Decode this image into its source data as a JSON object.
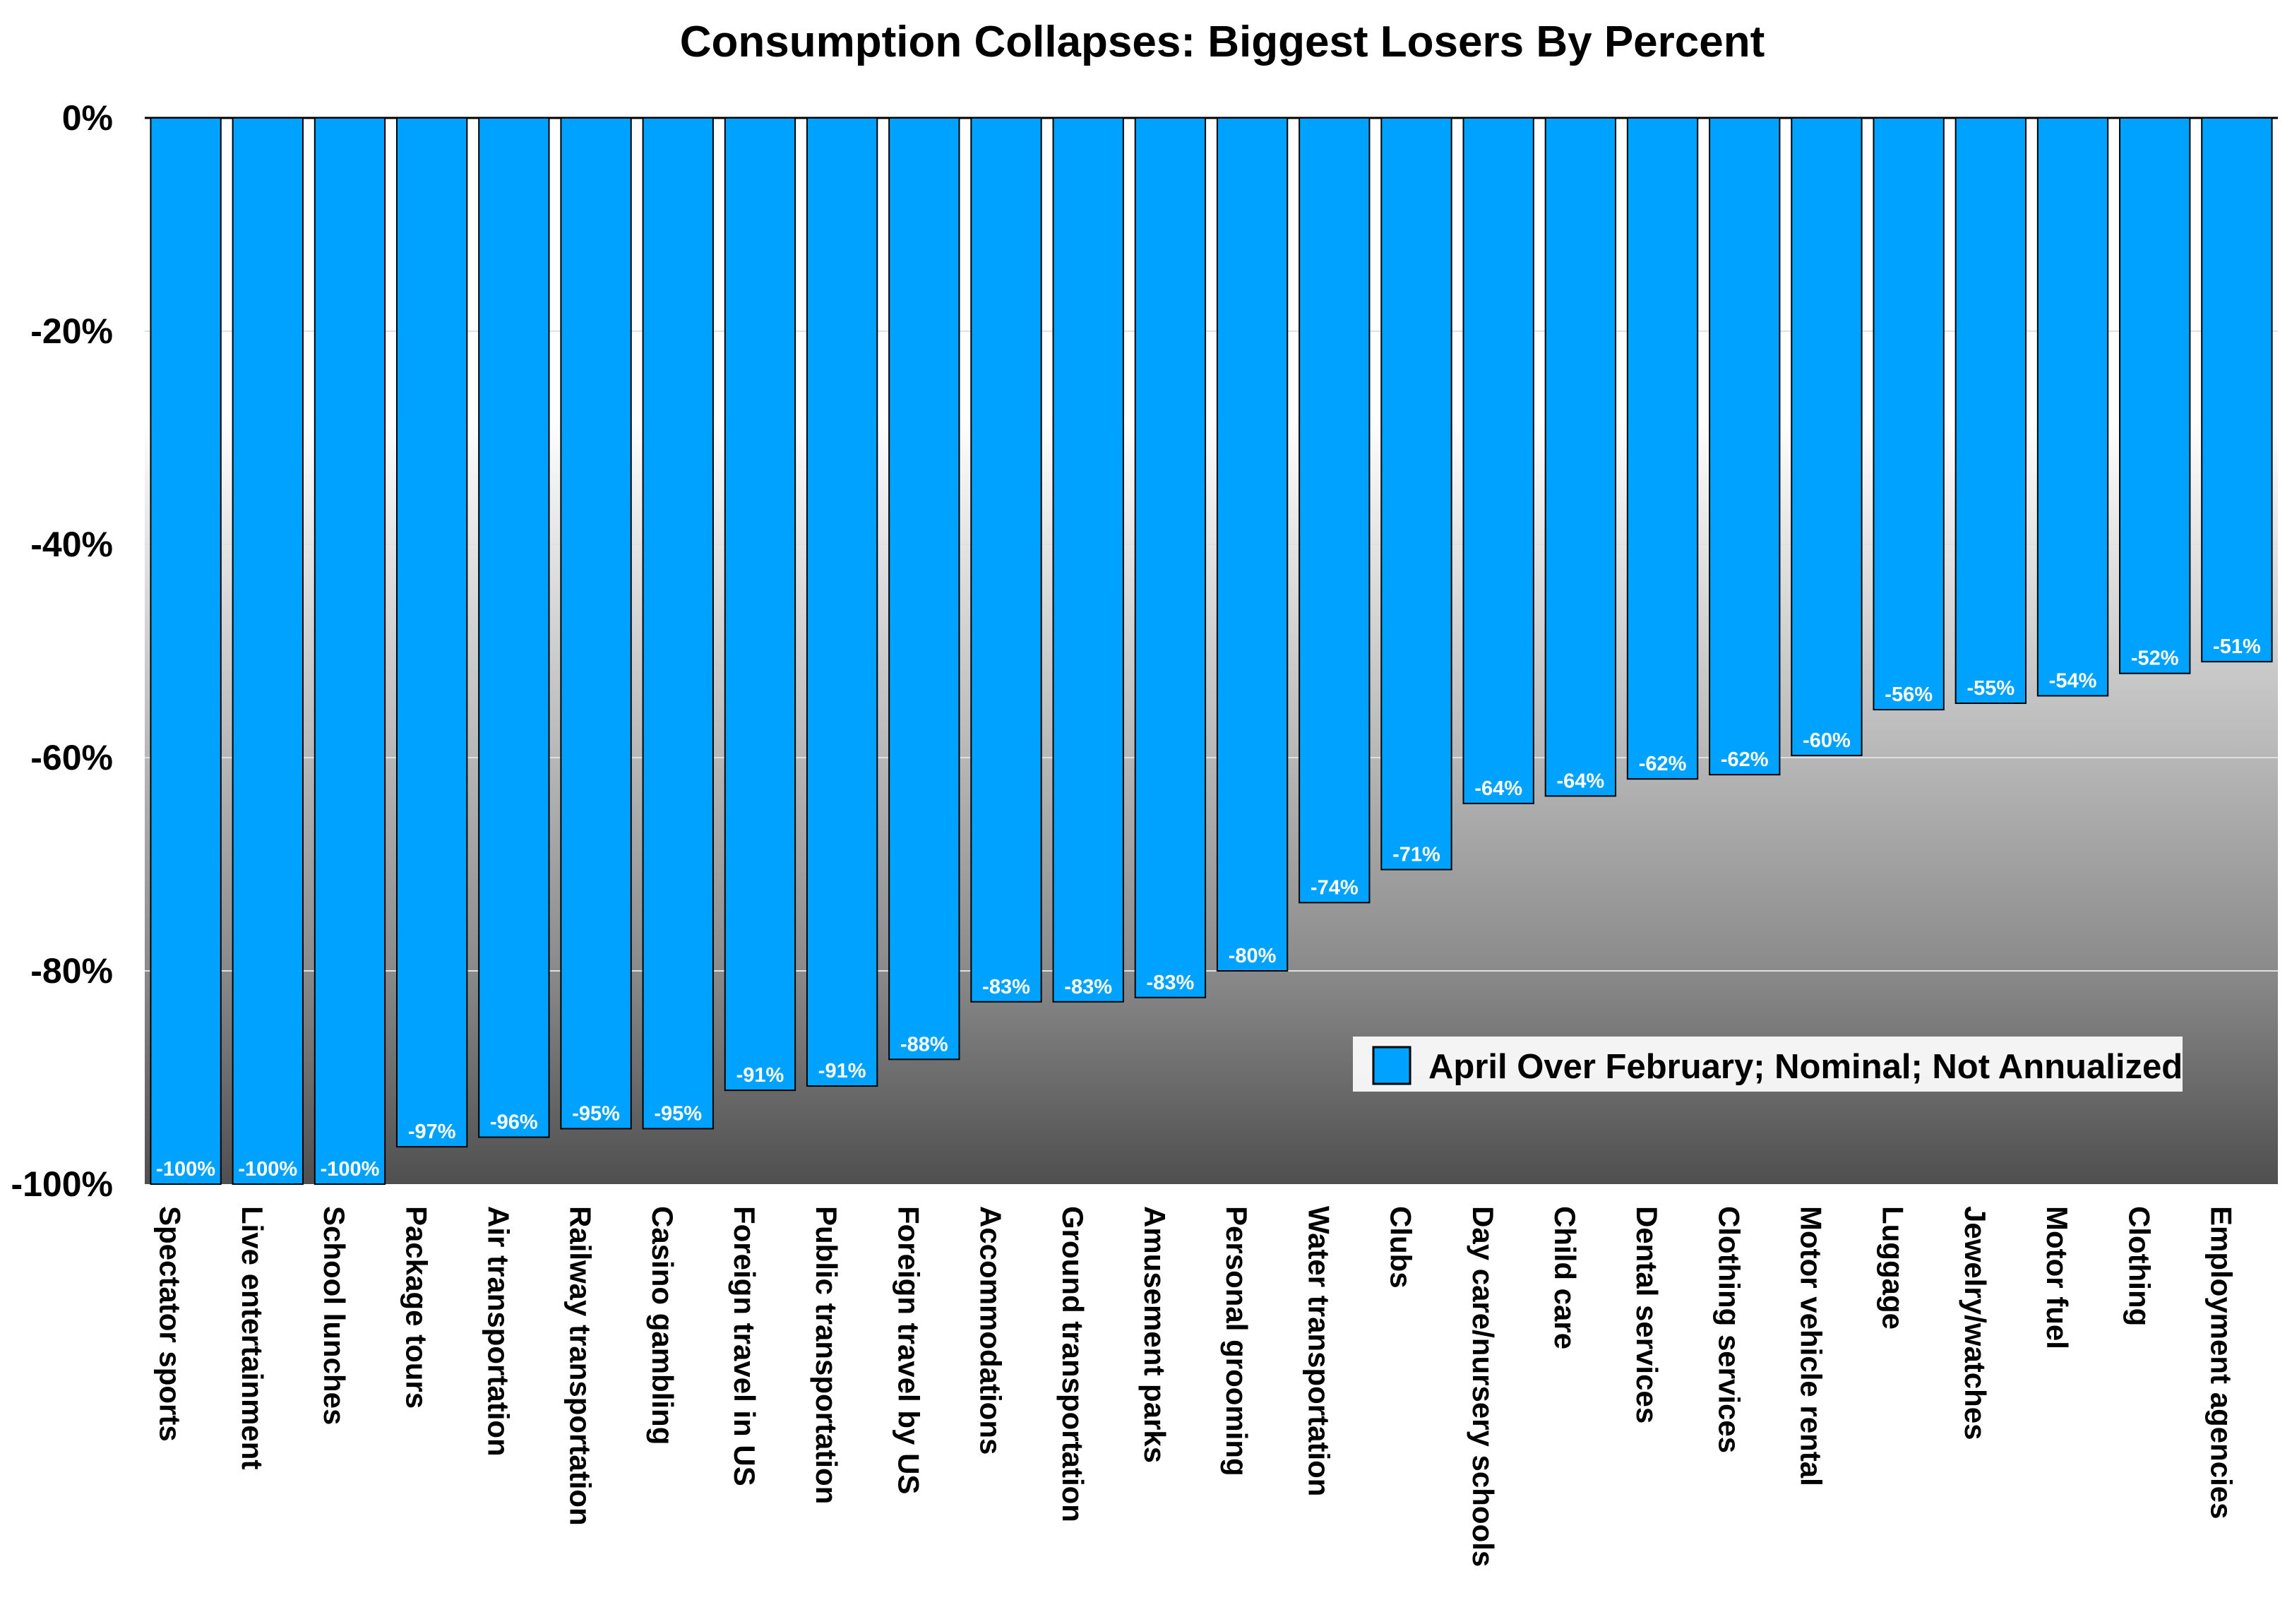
{
  "chart_data": {
    "type": "bar",
    "title": "Consumption Collapses: Biggest Losers By Percent",
    "xlabel": "",
    "ylabel": "",
    "ylim": [
      -100,
      0
    ],
    "y_ticks": [
      "0%",
      "-20%",
      "-40%",
      "-60%",
      "-80%",
      "-100%"
    ],
    "y_tick_values": [
      0,
      -20,
      -40,
      -60,
      -80,
      -100
    ],
    "grid": true,
    "legend_position": "bottom-right",
    "bar_color": "#00a2ff",
    "categories": [
      "Spectator sports",
      "Live entertainment",
      "School lunches",
      "Package tours",
      "Air transportation",
      "Railway transportation",
      "Casino gambling",
      "Foreign travel in US",
      "Public transportation",
      "Foreign travel by US",
      "Accommodations",
      "Ground transportation",
      "Amusement parks",
      "Personal grooming",
      "Water transportation",
      "Clubs",
      "Day care/nursery schools",
      "Child care",
      "Dental services",
      "Clothing services",
      "Motor vehicle rental",
      "Luggage",
      "Jewelry/watches",
      "Motor fuel",
      "Clothing",
      "Employment agencies"
    ],
    "series": [
      {
        "name": "April Over February; Nominal; Not Annualized",
        "values": [
          -100,
          -100,
          -100,
          -96.5,
          -95.6,
          -94.8,
          -94.8,
          -91.2,
          -90.8,
          -88.3,
          -82.9,
          -82.9,
          -82.5,
          -80.0,
          -73.6,
          -70.5,
          -64.3,
          -63.6,
          -62.0,
          -61.6,
          -59.8,
          -55.5,
          -54.9,
          -54.2,
          -52.1,
          -51.0
        ],
        "labels": [
          "-100%",
          "-100%",
          "-100%",
          "-97%",
          "-96%",
          "-95%",
          "-95%",
          "-91%",
          "-91%",
          "-88%",
          "-83%",
          "-83%",
          "-83%",
          "-80%",
          "-74%",
          "-71%",
          "-64%",
          "-64%",
          "-62%",
          "-62%",
          "-60%",
          "-56%",
          "-55%",
          "-54%",
          "-52%",
          "-51%"
        ]
      }
    ]
  }
}
